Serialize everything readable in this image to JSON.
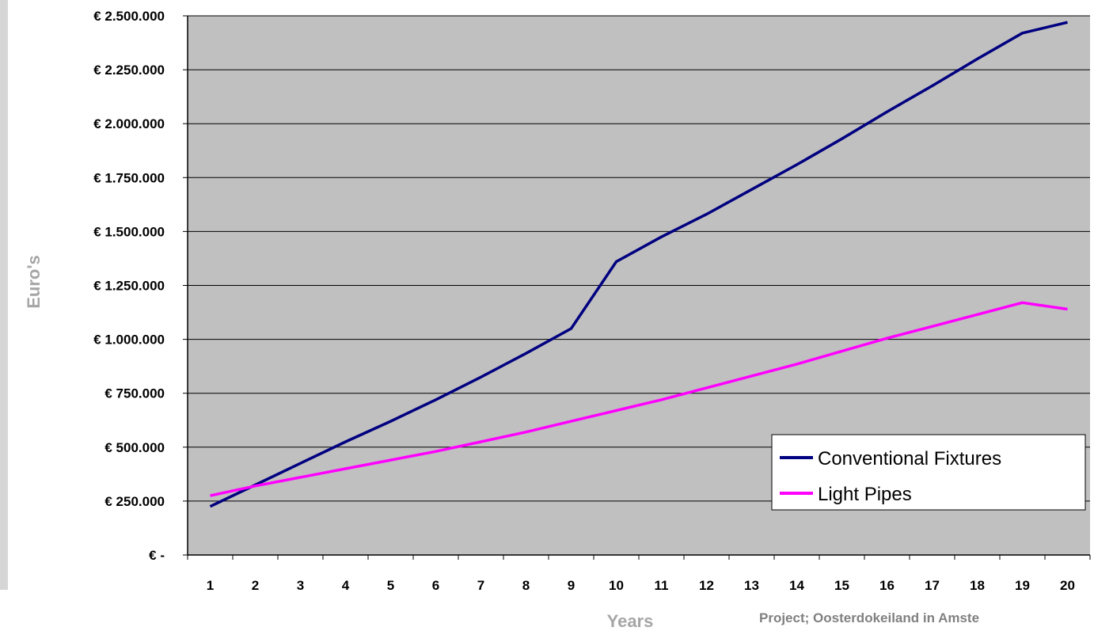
{
  "chart_data": {
    "type": "line",
    "title": "",
    "xlabel": "Years",
    "ylabel": "Euro's",
    "x": [
      1,
      2,
      3,
      4,
      5,
      6,
      7,
      8,
      9,
      10,
      11,
      12,
      13,
      14,
      15,
      16,
      17,
      18,
      19,
      20
    ],
    "x_tick_labels": [
      "1",
      "2",
      "3",
      "4",
      "5",
      "6",
      "7",
      "8",
      "9",
      "10",
      "11",
      "12",
      "13",
      "14",
      "15",
      "16",
      "17",
      "18",
      "19",
      "20"
    ],
    "y_tick_labels": [
      "€ -",
      "€ 250.000",
      "€ 500.000",
      "€ 750.000",
      "€ 1.000.000",
      "€ 1.250.000",
      "€ 1.500.000",
      "€ 1.750.000",
      "€ 2.000.000",
      "€ 2.250.000",
      "€ 2.500.000"
    ],
    "ylim": [
      0,
      2500000
    ],
    "y_tick_step": 250000,
    "grid": true,
    "legend_position": "bottom-right",
    "plot_background": "#c0c0c0",
    "series": [
      {
        "name": "Conventional Fixtures",
        "color": "#000080",
        "values": [
          225000,
          325000,
          425000,
          525000,
          620000,
          720000,
          825000,
          935000,
          1050000,
          1360000,
          1475000,
          1580000,
          1695000,
          1810000,
          1930000,
          2055000,
          2175000,
          2300000,
          2420000,
          2470000
        ]
      },
      {
        "name": "Light Pipes",
        "color": "#ff00ff",
        "values": [
          275000,
          320000,
          360000,
          400000,
          440000,
          480000,
          525000,
          570000,
          620000,
          670000,
          720000,
          775000,
          830000,
          885000,
          945000,
          1005000,
          1060000,
          1115000,
          1170000,
          1140000
        ]
      }
    ]
  },
  "footer": {
    "text": "Project; Oosterdokeiland in Amste"
  }
}
